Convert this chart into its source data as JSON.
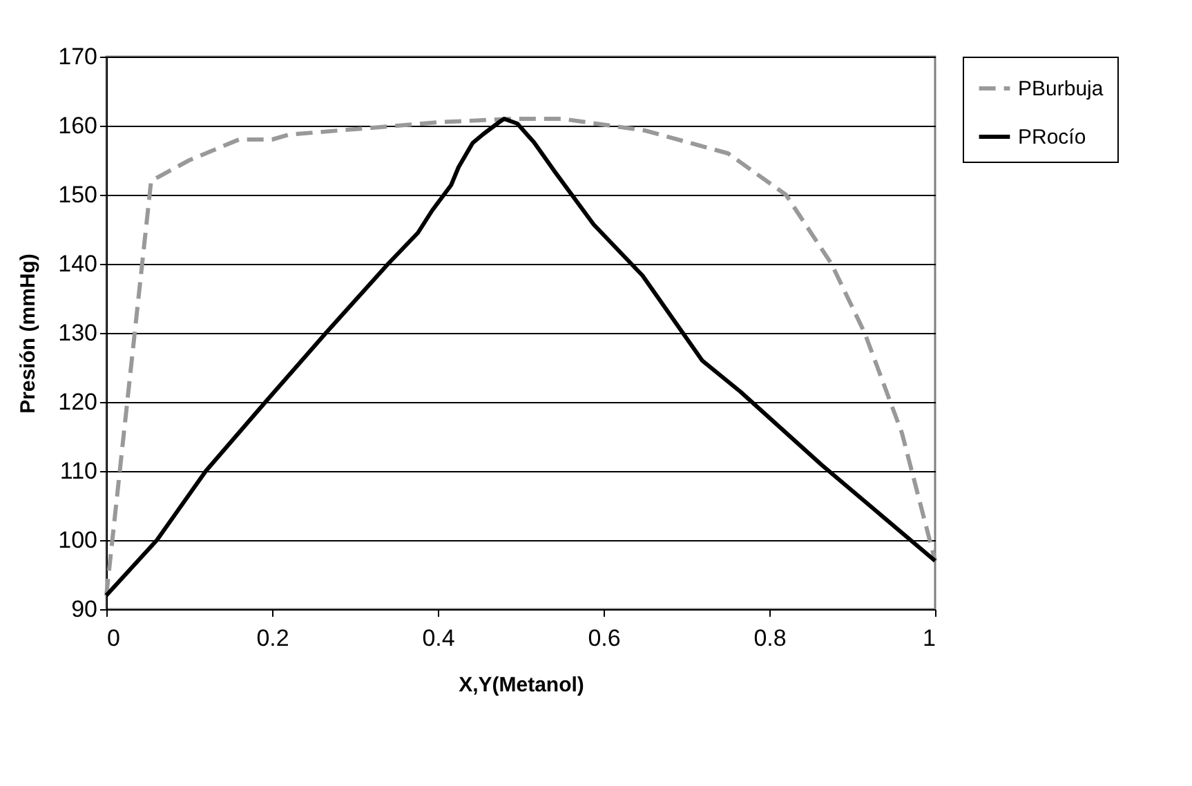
{
  "chart_data": {
    "type": "line",
    "xlabel": "X,Y(Metanol)",
    "ylabel": "Presión (mmHg)",
    "xlim": [
      0,
      1
    ],
    "xticks": [
      0,
      {
        "value": 0.2,
        "label": "0.2"
      },
      {
        "value": 0.4,
        "label": "0.4"
      },
      {
        "value": 0.6,
        "label": "0.6"
      },
      {
        "value": 0.8,
        "label": "0.8"
      },
      1
    ],
    "ylim": [
      90,
      170
    ],
    "yticks": [
      90,
      100,
      110,
      120,
      130,
      140,
      150,
      160,
      170
    ],
    "grid": "y",
    "legend": "right",
    "marker": "none",
    "series": [
      {
        "name": "PBurbuja",
        "color": "#999999",
        "line_style": "dashed",
        "x": [
          0,
          0.054,
          0.1,
          0.16,
          0.2,
          0.22,
          0.3,
          0.4,
          0.49,
          0.55,
          0.65,
          0.75,
          0.82,
          0.875,
          0.915,
          0.96,
          1
        ],
        "values": [
          92,
          152,
          155,
          158,
          158,
          158.7,
          159.5,
          160.5,
          161,
          161,
          159.3,
          156,
          150,
          140,
          130,
          115.5,
          97
        ]
      },
      {
        "name": "PRocío",
        "color": "#000000",
        "line_style": "solid",
        "x": [
          0,
          0.061,
          0.12,
          0.192,
          0.265,
          0.34,
          0.376,
          0.393,
          0.416,
          0.425,
          0.442,
          0.455,
          0.475,
          0.48,
          0.496,
          0.516,
          0.542,
          0.588,
          0.647,
          0.719,
          0.765,
          0.863,
          1
        ],
        "values": [
          92,
          100,
          110,
          120,
          130,
          140,
          144.5,
          147.7,
          151.4,
          154,
          157.5,
          158.8,
          160.6,
          161,
          160.3,
          157.6,
          153.2,
          145.7,
          138.3,
          126,
          121.5,
          110.9,
          97
        ]
      }
    ]
  }
}
